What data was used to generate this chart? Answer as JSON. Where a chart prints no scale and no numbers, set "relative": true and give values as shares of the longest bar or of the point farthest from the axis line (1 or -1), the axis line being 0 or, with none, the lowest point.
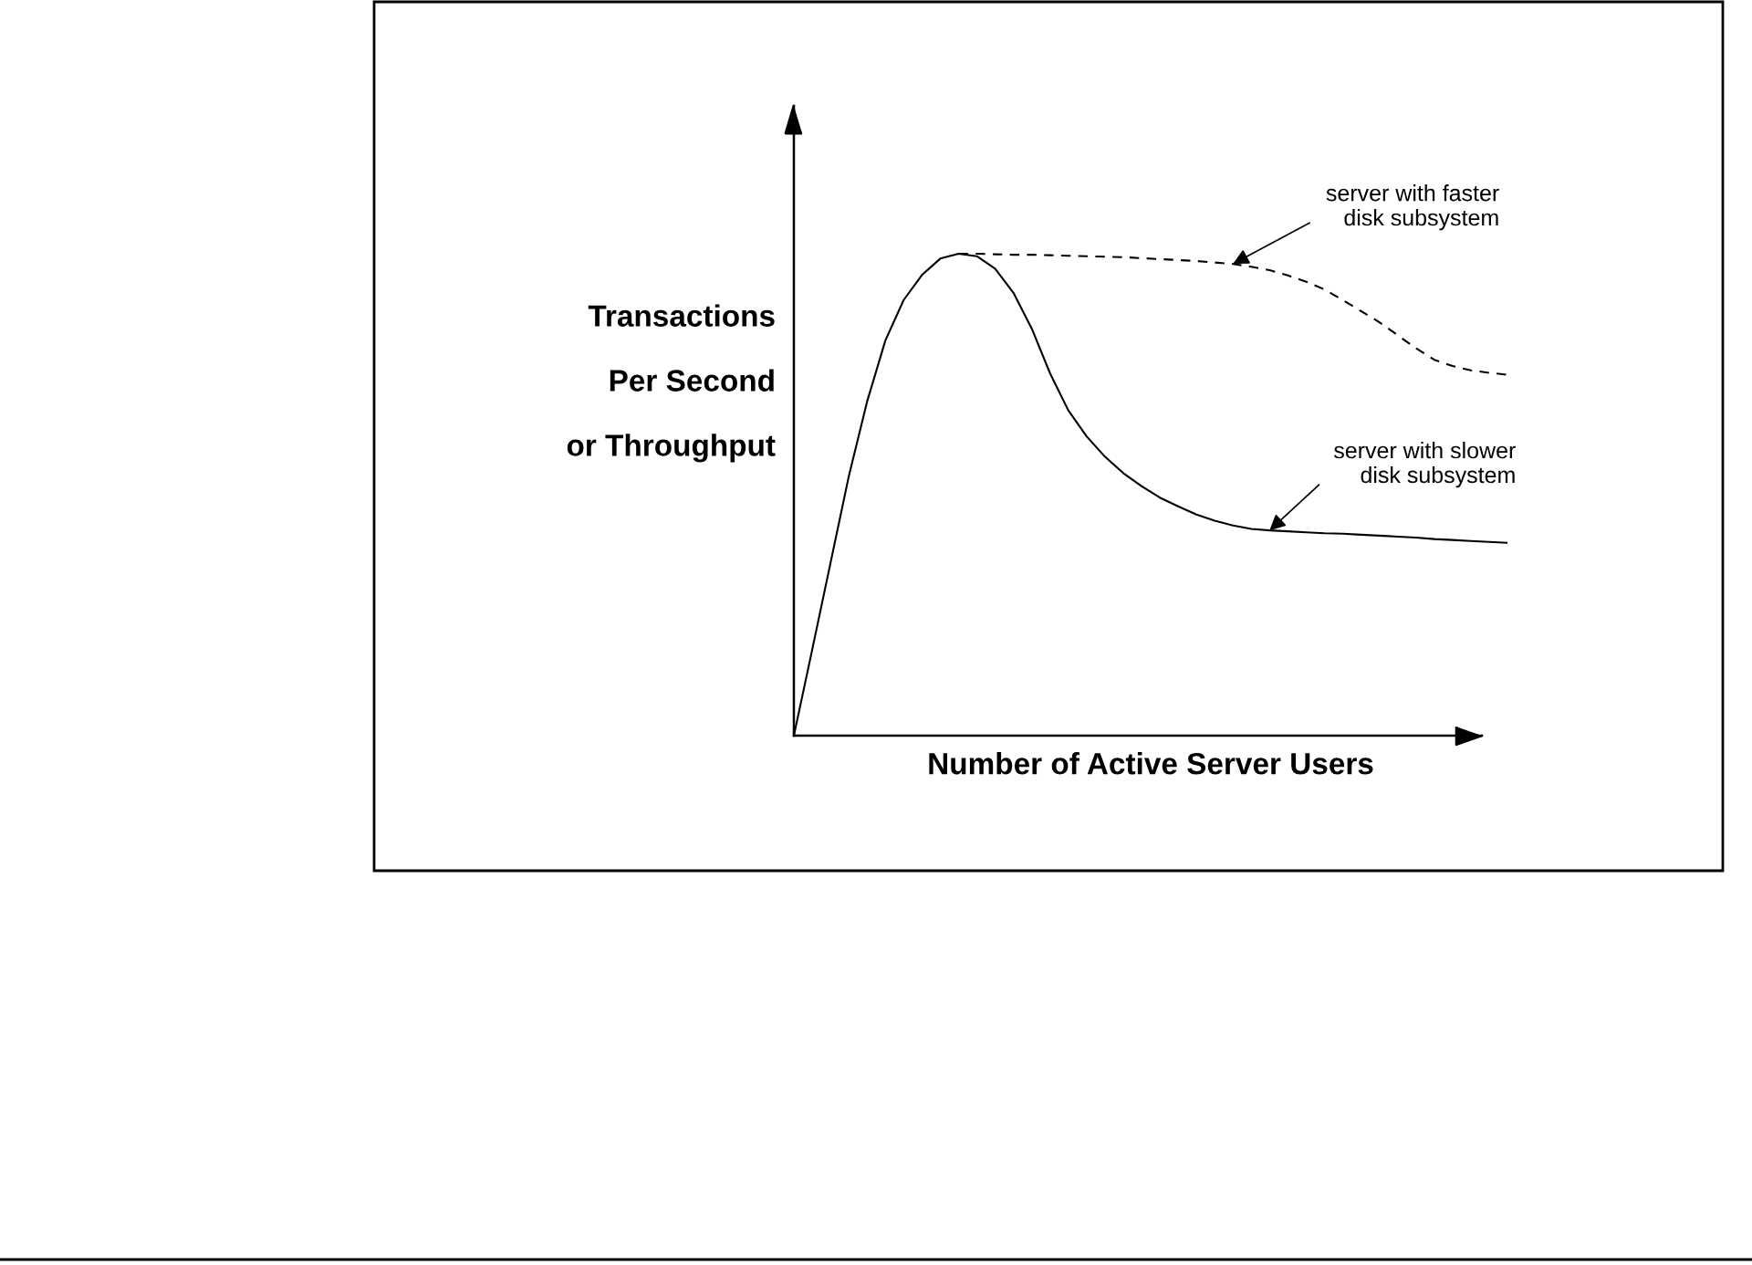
{
  "chart_data": {
    "type": "line",
    "relative": true,
    "xlabel": "Number of Active Server Users",
    "ylabel": "Transactions\nPer Second\nor Throughput",
    "categories": [
      null,
      null,
      null,
      null,
      null,
      null,
      null,
      null,
      null,
      null,
      null,
      null,
      null,
      null,
      null,
      null,
      null,
      null,
      null,
      null,
      null,
      null,
      null,
      null,
      null,
      null,
      null,
      null,
      null,
      null,
      null,
      null,
      null,
      null,
      null,
      null,
      null,
      null,
      null,
      null
    ],
    "series": [
      {
        "name": "server with slower\ndisk subsystem",
        "color": "#000000",
        "line_style": "solid",
        "values": [
          0,
          0.178,
          0.358,
          0.538,
          0.693,
          0.82,
          0.904,
          0.956,
          0.99,
          1.0,
          0.995,
          0.969,
          0.919,
          0.845,
          0.752,
          0.675,
          0.621,
          0.579,
          0.545,
          0.518,
          0.494,
          0.476,
          0.459,
          0.446,
          0.436,
          0.429,
          0.426,
          0.424,
          0.422,
          0.42,
          0.419,
          0.417,
          0.415,
          0.413,
          0.411,
          0.408,
          0.406,
          0.404,
          0.402,
          0.4
        ]
      },
      {
        "name": "server with faster\ndisk subsystem",
        "color": "#000000",
        "line_style": "dashed",
        "values": [
          null,
          null,
          null,
          null,
          null,
          null,
          null,
          null,
          null,
          1.0,
          1.0,
          0.999,
          0.998,
          0.998,
          0.997,
          0.996,
          0.995,
          0.994,
          0.993,
          0.991,
          0.989,
          0.987,
          0.985,
          0.982,
          0.979,
          0.973,
          0.966,
          0.955,
          0.942,
          0.926,
          0.904,
          0.881,
          0.858,
          0.831,
          0.804,
          0.78,
          0.767,
          0.758,
          0.753,
          0.749
        ]
      }
    ]
  }
}
